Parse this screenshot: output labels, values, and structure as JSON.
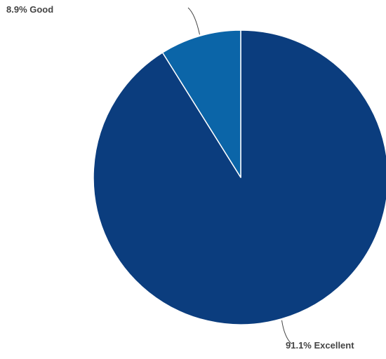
{
  "chart_data": {
    "type": "pie",
    "categories": [
      "Excellent",
      "Good"
    ],
    "values": [
      91.1,
      8.9
    ],
    "labels": [
      "91.1% Excellent",
      "8.9% Good"
    ],
    "colors": [
      "#0b3d7e",
      "#0b65a8"
    ],
    "title": "",
    "start_angle_deg": 0,
    "direction": "clockwise"
  }
}
